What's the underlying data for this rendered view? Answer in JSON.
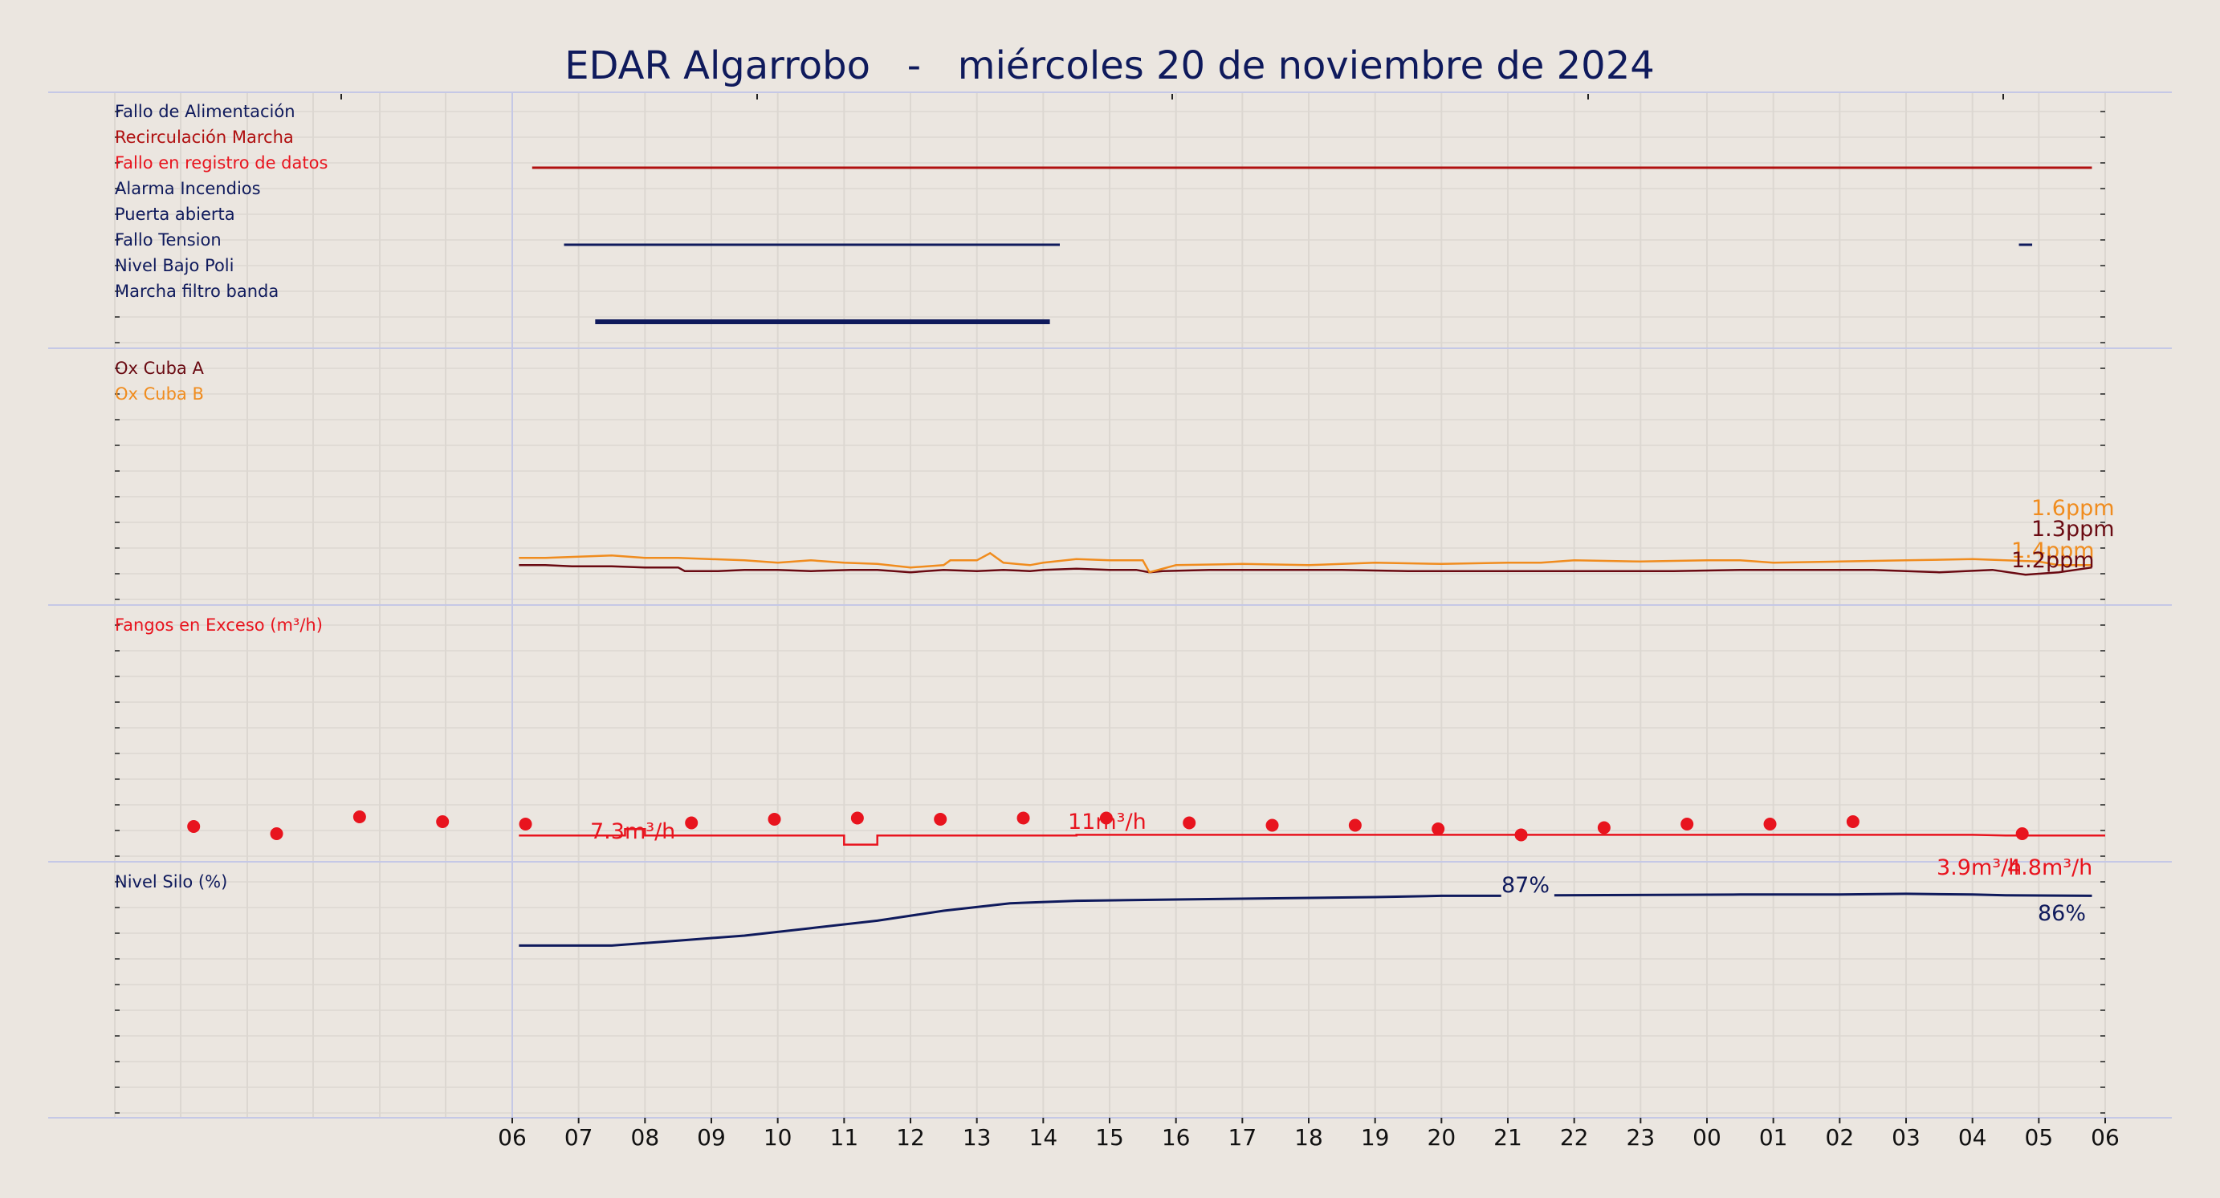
{
  "chart_data": {
    "type": "line",
    "title": "EDAR Algarrobo   -   miércoles 20 de noviembre de 2024",
    "x_tick_labels": [
      "06",
      "07",
      "08",
      "09",
      "10",
      "11",
      "12",
      "13",
      "14",
      "15",
      "16",
      "17",
      "18",
      "19",
      "20",
      "21",
      "22",
      "23",
      "00",
      "01",
      "02",
      "03",
      "04",
      "05",
      "06"
    ],
    "x_range_hours": [
      0,
      24
    ],
    "grid": true,
    "colors": {
      "background": "#ebe6e0",
      "title": "#0f1a5c",
      "navy": "#0f1a5c",
      "red": "#e8141e",
      "darkred": "#b01010",
      "maroon": "#6a0a12",
      "orange": "#f08c1e",
      "grid": "#dcd7d1",
      "separator": "#c5c8e6"
    },
    "panels": [
      {
        "id": "alarms",
        "type": "digital",
        "signals": [
          {
            "label": "Fallo de Alimentación",
            "color": "#0f1a5c",
            "on_intervals": []
          },
          {
            "label": "Recirculación Marcha",
            "color": "#b01010",
            "on_intervals": [
              [
                0.3,
                23.8
              ]
            ]
          },
          {
            "label": "Fallo en registro de datos",
            "color": "#e8141e",
            "on_intervals": []
          },
          {
            "label": "Alarma Incendios",
            "color": "#0f1a5c",
            "on_intervals": []
          },
          {
            "label": "Puerta abierta",
            "color": "#0f1a5c",
            "on_intervals": [
              [
                0.78,
                8.25
              ],
              [
                22.7,
                22.9
              ]
            ]
          },
          {
            "label": "Fallo Tension",
            "color": "#0f1a5c",
            "on_intervals": []
          },
          {
            "label": "Nivel Bajo Poli",
            "color": "#0f1a5c",
            "on_intervals": []
          },
          {
            "label": "Marcha filtro banda",
            "color": "#0f1a5c",
            "on_intervals": [
              [
                1.25,
                8.1
              ]
            ]
          }
        ]
      },
      {
        "id": "oxygen",
        "type": "analog",
        "ylim": [
          0,
          10
        ],
        "series": [
          {
            "name": "Ox Cuba A",
            "color": "#6a0a12",
            "points": [
              [
                0.1,
                1.3
              ],
              [
                0.5,
                1.3
              ],
              [
                0.9,
                1.25
              ],
              [
                1.5,
                1.25
              ],
              [
                2.0,
                1.2
              ],
              [
                2.5,
                1.2
              ],
              [
                2.6,
                1.05
              ],
              [
                3.1,
                1.05
              ],
              [
                3.5,
                1.1
              ],
              [
                4.0,
                1.1
              ],
              [
                4.5,
                1.05
              ],
              [
                5.1,
                1.1
              ],
              [
                5.5,
                1.1
              ],
              [
                6.0,
                1.0
              ],
              [
                6.5,
                1.1
              ],
              [
                7.0,
                1.05
              ],
              [
                7.4,
                1.1
              ],
              [
                7.8,
                1.05
              ],
              [
                8.0,
                1.1
              ],
              [
                8.5,
                1.15
              ],
              [
                9.0,
                1.1
              ],
              [
                9.4,
                1.1
              ],
              [
                9.6,
                1.0
              ],
              [
                9.8,
                1.05
              ],
              [
                10.5,
                1.1
              ],
              [
                11.5,
                1.1
              ],
              [
                12.5,
                1.1
              ],
              [
                13.5,
                1.05
              ],
              [
                14.5,
                1.05
              ],
              [
                15.5,
                1.05
              ],
              [
                16.5,
                1.05
              ],
              [
                17.5,
                1.05
              ],
              [
                18.5,
                1.1
              ],
              [
                19.5,
                1.1
              ],
              [
                20.5,
                1.1
              ],
              [
                21.0,
                1.05
              ],
              [
                21.5,
                1.0
              ],
              [
                22.3,
                1.1
              ],
              [
                22.8,
                0.9
              ],
              [
                23.3,
                1.0
              ],
              [
                23.8,
                1.2
              ]
            ],
            "end_label": "1.3ppm"
          },
          {
            "name": "Ox Cuba B",
            "color": "#f08c1e",
            "points": [
              [
                0.1,
                1.6
              ],
              [
                0.5,
                1.6
              ],
              [
                1.0,
                1.65
              ],
              [
                1.5,
                1.7
              ],
              [
                2.0,
                1.6
              ],
              [
                2.5,
                1.6
              ],
              [
                3.5,
                1.5
              ],
              [
                4.0,
                1.4
              ],
              [
                4.5,
                1.5
              ],
              [
                5.0,
                1.4
              ],
              [
                5.5,
                1.35
              ],
              [
                6.0,
                1.2
              ],
              [
                6.5,
                1.3
              ],
              [
                6.6,
                1.5
              ],
              [
                7.0,
                1.5
              ],
              [
                7.2,
                1.8
              ],
              [
                7.4,
                1.4
              ],
              [
                7.8,
                1.3
              ],
              [
                8.0,
                1.4
              ],
              [
                8.5,
                1.55
              ],
              [
                9.0,
                1.5
              ],
              [
                9.5,
                1.5
              ],
              [
                9.6,
                1.0
              ],
              [
                10.0,
                1.3
              ],
              [
                11.0,
                1.35
              ],
              [
                12.0,
                1.3
              ],
              [
                13.0,
                1.4
              ],
              [
                14.0,
                1.35
              ],
              [
                15.0,
                1.4
              ],
              [
                15.5,
                1.4
              ],
              [
                16.0,
                1.5
              ],
              [
                17.0,
                1.45
              ],
              [
                18.0,
                1.5
              ],
              [
                18.5,
                1.5
              ],
              [
                19.0,
                1.4
              ],
              [
                20.0,
                1.45
              ],
              [
                21.0,
                1.5
              ],
              [
                22.0,
                1.55
              ],
              [
                22.5,
                1.5
              ],
              [
                23.0,
                1.45
              ],
              [
                23.3,
                1.3
              ],
              [
                23.8,
                1.3
              ]
            ],
            "end_label": "1.6ppm"
          }
        ],
        "end_labels_extra": [
          {
            "text": "1.4ppm",
            "color": "#f08c1e"
          },
          {
            "text": "1.2ppm",
            "color": "#6a0a12"
          }
        ]
      },
      {
        "id": "sludge",
        "type": "analog",
        "ylim": [
          0,
          100
        ],
        "series": [
          {
            "name": "Fangos en Exceso (m³/h)",
            "color": "#e8141e",
            "points": [
              [
                0.1,
                7.3
              ],
              [
                1.7,
                7.3
              ],
              [
                1.7,
                10
              ],
              [
                2.0,
                10
              ],
              [
                2.0,
                7.3
              ],
              [
                5.0,
                7.3
              ],
              [
                5.0,
                3.5
              ],
              [
                5.5,
                3.5
              ],
              [
                5.5,
                7.3
              ],
              [
                8.5,
                7.3
              ],
              [
                8.5,
                7.6
              ],
              [
                12.0,
                7.6
              ],
              [
                14.0,
                7.6
              ],
              [
                16.0,
                7.6
              ],
              [
                20.0,
                7.6
              ],
              [
                22.0,
                7.6
              ],
              [
                22.5,
                7.3
              ],
              [
                24.0,
                7.3
              ]
            ],
            "scatter": [
              [
                -4.8,
                11
              ],
              [
                -3.55,
                8
              ],
              [
                -2.3,
                15
              ],
              [
                -1.05,
                13
              ],
              [
                0.2,
                12
              ],
              [
                2.7,
                12.5
              ],
              [
                3.95,
                14
              ],
              [
                5.2,
                14.5
              ],
              [
                6.45,
                14
              ],
              [
                7.7,
                14.5
              ],
              [
                8.95,
                14.5
              ],
              [
                10.2,
                12.5
              ],
              [
                11.45,
                11.5
              ],
              [
                12.7,
                11.5
              ],
              [
                13.95,
                10
              ],
              [
                15.2,
                7.5
              ],
              [
                16.45,
                10.5
              ],
              [
                17.7,
                12
              ],
              [
                18.95,
                12
              ],
              [
                20.2,
                13
              ],
              [
                22.75,
                8
              ]
            ]
          }
        ],
        "annotations": [
          {
            "text": "7.3m³/h",
            "x": 1.8,
            "y": 7.3,
            "color": "#e8141e"
          },
          {
            "text": "11m³/h",
            "x": 9.3,
            "y": 11,
            "color": "#e8141e"
          },
          {
            "text": "3.9m³/h",
            "x": 22.0,
            "y": 3.9,
            "color": "#e8141e"
          },
          {
            "text": "4.8m³/h",
            "x": 23.4,
            "y": 4.8,
            "color": "#e8141e"
          }
        ]
      },
      {
        "id": "silo",
        "type": "analog",
        "ylim": [
          0,
          100
        ],
        "series": [
          {
            "name": "Nivel Silo (%)",
            "color": "#0f1a5c",
            "points": [
              [
                0.1,
                66
              ],
              [
                1.5,
                66
              ],
              [
                2.5,
                68
              ],
              [
                3.5,
                70
              ],
              [
                4.5,
                73
              ],
              [
                5.5,
                76
              ],
              [
                6.5,
                80
              ],
              [
                7.5,
                83
              ],
              [
                8.5,
                84
              ],
              [
                10.0,
                84.5
              ],
              [
                11.5,
                85
              ],
              [
                13.0,
                85.5
              ],
              [
                14.0,
                86
              ],
              [
                14.9,
                86
              ],
              [
                15.7,
                86.2
              ],
              [
                18.5,
                86.5
              ],
              [
                20.0,
                86.5
              ],
              [
                21.0,
                86.8
              ],
              [
                22.0,
                86.5
              ],
              [
                22.5,
                86.2
              ],
              [
                23.8,
                86
              ]
            ],
            "gap": [
              14.9,
              15.7
            ]
          }
        ],
        "annotations": [
          {
            "text": "87%",
            "x": 15.0,
            "y": 87,
            "color": "#0f1a5c"
          },
          {
            "text": "86%",
            "x": 23.8,
            "y": 86,
            "color": "#0f1a5c"
          }
        ]
      }
    ]
  }
}
